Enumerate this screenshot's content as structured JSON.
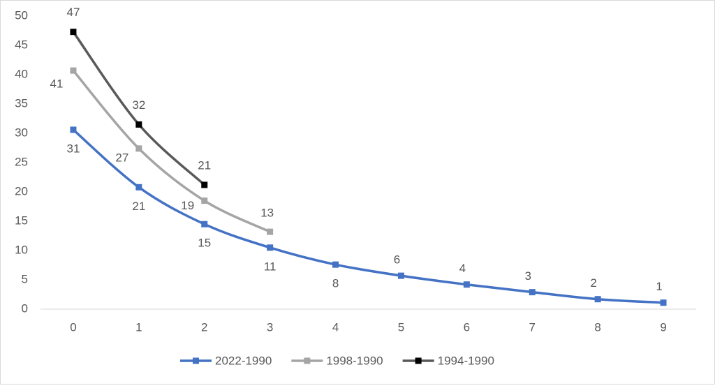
{
  "chart_data": {
    "type": "line",
    "categories": [
      "0",
      "1",
      "2",
      "3",
      "4",
      "5",
      "6",
      "7",
      "8",
      "9"
    ],
    "series": [
      {
        "name": "2022-1990",
        "color": "#4472c4",
        "marker_color": "#4472c4",
        "values": [
          30.6,
          20.8,
          14.5,
          10.5,
          7.6,
          5.7,
          4.2,
          2.9,
          1.7,
          1.1
        ],
        "value_labels": [
          "31",
          "21",
          "15",
          "11",
          "8",
          "6",
          "4",
          "3",
          "2",
          "1"
        ]
      },
      {
        "name": "1998-1990",
        "color": "#a5a5a5",
        "marker_color": "#a5a5a5",
        "values": [
          40.7,
          27.4,
          18.5,
          13.2,
          null,
          null,
          null,
          null,
          null,
          null
        ],
        "value_labels": [
          "41",
          "27",
          "19",
          "13",
          null,
          null,
          null,
          null,
          null,
          null
        ]
      },
      {
        "name": "1994-1990",
        "color": "#595959",
        "marker_color": "#000000",
        "values": [
          47.3,
          31.5,
          21.2,
          null,
          null,
          null,
          null,
          null,
          null,
          null
        ],
        "value_labels": [
          "47",
          "32",
          "21",
          null,
          null,
          null,
          null,
          null,
          null,
          null
        ]
      }
    ],
    "ylim": [
      0,
      50
    ],
    "yticks": [
      0,
      5,
      10,
      15,
      20,
      25,
      30,
      35,
      40,
      45,
      50
    ],
    "grid": false,
    "smooth": true,
    "legend": "bottom"
  }
}
